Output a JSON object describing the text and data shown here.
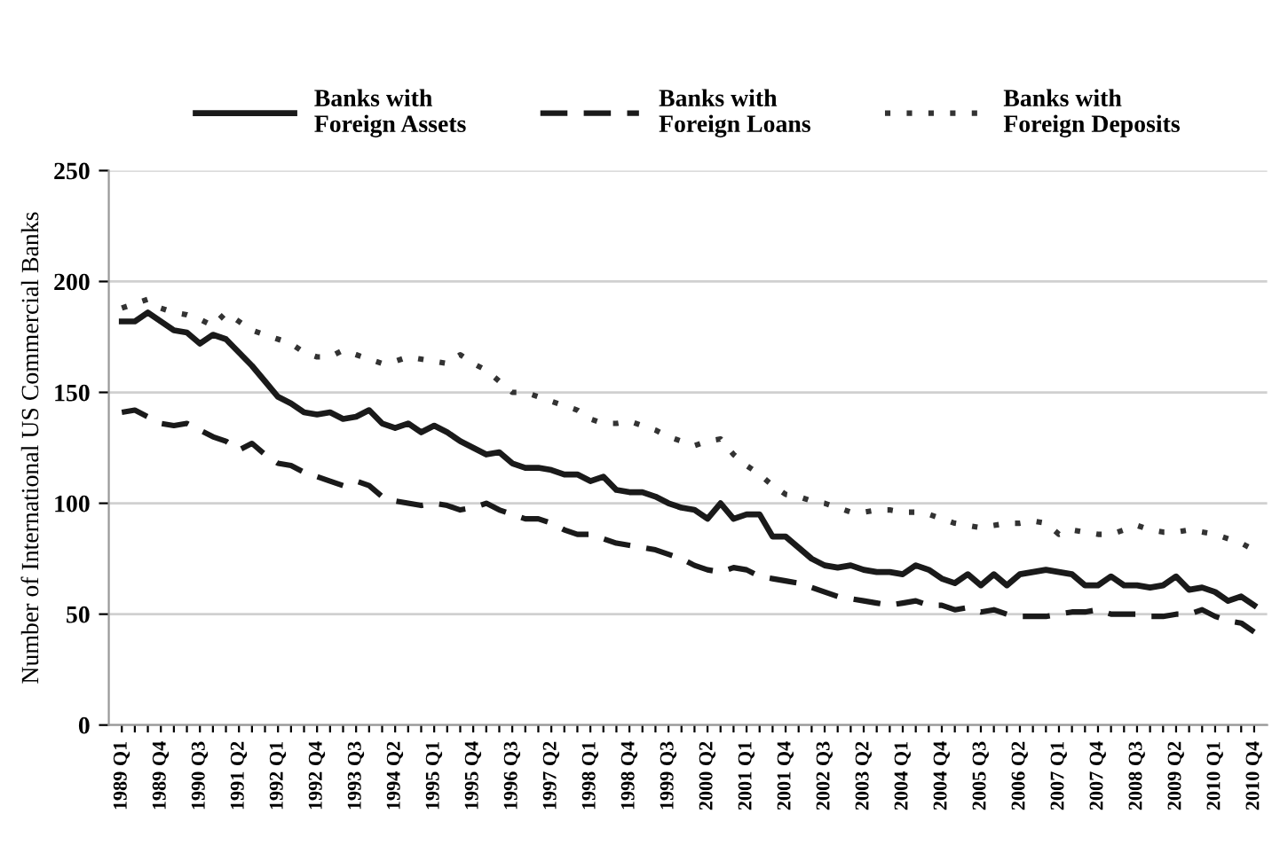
{
  "chart_data": {
    "type": "line",
    "ylabel": "Number of International US Commercial Banks",
    "categories": [
      "1989 Q1",
      null,
      null,
      "1989 Q4",
      null,
      null,
      "1990 Q3",
      null,
      null,
      "1991 Q2",
      null,
      null,
      "1992 Q1",
      null,
      null,
      "1992 Q4",
      null,
      null,
      "1993 Q3",
      null,
      null,
      "1994 Q2",
      null,
      null,
      "1995 Q1",
      null,
      null,
      "1995 Q4",
      null,
      null,
      "1996 Q3",
      null,
      null,
      "1997 Q2",
      null,
      null,
      "1998 Q1",
      null,
      null,
      "1998 Q4",
      null,
      null,
      "1999 Q3",
      null,
      null,
      "2000 Q2",
      null,
      null,
      "2001 Q1",
      null,
      null,
      "2001 Q4",
      null,
      null,
      "2002 Q3",
      null,
      null,
      "2003 Q2",
      null,
      null,
      "2004 Q1",
      null,
      null,
      "2004 Q4",
      null,
      null,
      "2005 Q3",
      null,
      null,
      "2006 Q2",
      null,
      null,
      "2007 Q1",
      null,
      null,
      "2007 Q4",
      null,
      null,
      "2008 Q3",
      null,
      null,
      "2009 Q2",
      null,
      null,
      "2010 Q1",
      null,
      null,
      "2010 Q4"
    ],
    "series": [
      {
        "name": "Banks with\nForeign Assets",
        "color": "#1a1a1a",
        "line_style": "solid",
        "values": [
          182,
          182,
          186,
          182,
          178,
          177,
          172,
          176,
          174,
          168,
          162,
          155,
          148,
          145,
          141,
          140,
          141,
          138,
          139,
          142,
          136,
          134,
          136,
          132,
          135,
          132,
          128,
          125,
          122,
          123,
          118,
          116,
          116,
          115,
          113,
          113,
          110,
          112,
          106,
          105,
          105,
          103,
          100,
          98,
          97,
          93,
          100,
          93,
          95,
          95,
          85,
          85,
          80,
          75,
          72,
          71,
          72,
          70,
          69,
          69,
          68,
          72,
          70,
          66,
          64,
          68,
          63,
          68,
          63,
          68,
          69,
          70,
          69,
          68,
          63,
          63,
          67,
          63,
          63,
          62,
          63,
          67,
          61,
          62,
          60,
          56,
          58,
          54
        ]
      },
      {
        "name": "Banks with\nForeign Loans",
        "color": "#1a1a1a",
        "line_style": "dashed",
        "values": [
          141,
          142,
          139,
          136,
          135,
          136,
          133,
          130,
          128,
          124,
          127,
          122,
          118,
          117,
          114,
          112,
          110,
          108,
          110,
          108,
          103,
          101,
          100,
          99,
          100,
          99,
          97,
          98,
          100,
          97,
          95,
          93,
          93,
          91,
          88,
          86,
          86,
          84,
          82,
          81,
          80,
          79,
          77,
          75,
          72,
          70,
          69,
          71,
          70,
          67,
          66,
          65,
          64,
          62,
          60,
          58,
          57,
          56,
          55,
          54,
          55,
          56,
          54,
          54,
          52,
          53,
          51,
          52,
          50,
          49,
          49,
          49,
          50,
          51,
          51,
          52,
          50,
          50,
          50,
          49,
          49,
          50,
          50,
          52,
          49,
          47,
          46,
          42
        ]
      },
      {
        "name": "Banks with\nForeign Deposits",
        "color": "#333333",
        "line_style": "dotted",
        "values": [
          188,
          190,
          192,
          188,
          186,
          185,
          183,
          180,
          186,
          182,
          178,
          176,
          174,
          172,
          168,
          166,
          166,
          169,
          167,
          165,
          163,
          164,
          166,
          165,
          164,
          163,
          167,
          163,
          160,
          155,
          150,
          150,
          148,
          146,
          144,
          142,
          138,
          136,
          136,
          137,
          135,
          133,
          130,
          128,
          126,
          128,
          129,
          122,
          117,
          113,
          108,
          104,
          103,
          101,
          100,
          98,
          96,
          96,
          97,
          97,
          96,
          96,
          95,
          93,
          91,
          90,
          89,
          90,
          91,
          91,
          92,
          91,
          86,
          88,
          87,
          86,
          86,
          88,
          90,
          88,
          87,
          87,
          88,
          87,
          86,
          84,
          82,
          79
        ]
      }
    ],
    "ylim": [
      0,
      250
    ],
    "yticks": [
      0,
      50,
      100,
      150,
      200,
      250
    ],
    "grid": "y",
    "legend": "top",
    "marker": "none"
  }
}
